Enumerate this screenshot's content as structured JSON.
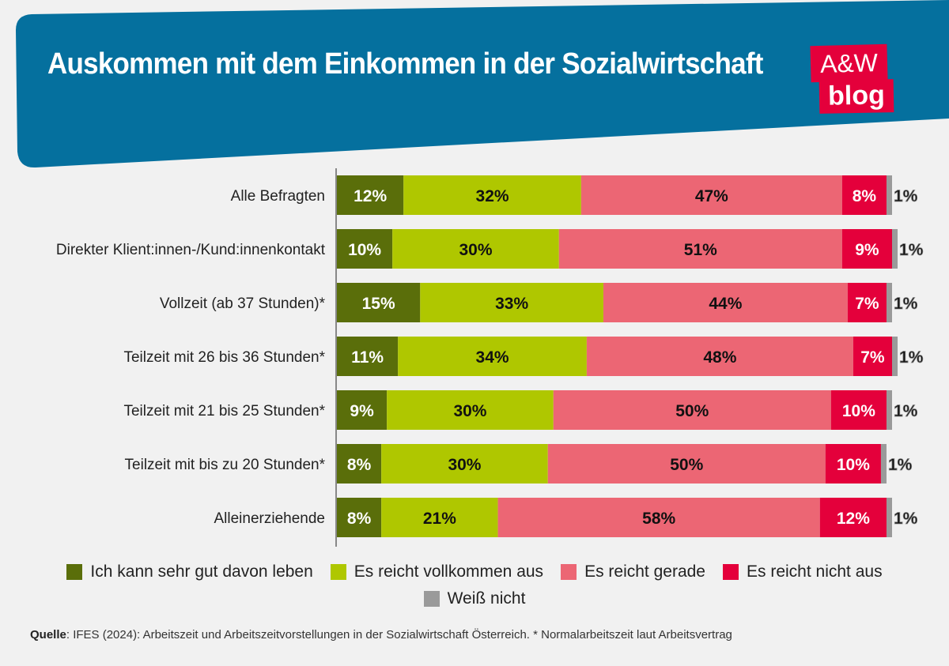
{
  "header": {
    "title": "Auskommen mit dem Einkommen in der Sozialwirtschaft",
    "logo_line1": "A&W",
    "logo_line2": "blog",
    "banner_color": "#05709e",
    "logo_color": "#e4003b"
  },
  "chart_data": {
    "type": "bar",
    "orientation": "horizontal",
    "stacked": true,
    "title": "Auskommen mit dem Einkommen in der Sozialwirtschaft",
    "xlabel": "",
    "ylabel": "",
    "xlim": [
      0,
      100
    ],
    "grid": false,
    "legend_position": "bottom",
    "categories": [
      "Alle Befragten",
      "Direkter Klient:innen-/Kund:innenkontakt",
      "Vollzeit (ab 37 Stunden)*",
      "Teilzeit mit 26 bis 36 Stunden*",
      "Teilzeit mit 21 bis 25 Stunden*",
      "Teilzeit mit bis zu 20 Stunden*",
      "Alleinerziehende"
    ],
    "series": [
      {
        "name": "Ich kann sehr gut davon leben",
        "color": "#5a6e0a",
        "label_color": "#ffffff",
        "values": [
          12,
          10,
          15,
          11,
          9,
          8,
          8
        ]
      },
      {
        "name": "Es reicht vollkommen aus",
        "color": "#afc700",
        "label_color": "#111111",
        "values": [
          32,
          30,
          33,
          34,
          30,
          30,
          21
        ]
      },
      {
        "name": "Es reicht gerade",
        "color": "#ec6674",
        "label_color": "#111111",
        "values": [
          47,
          51,
          44,
          48,
          50,
          50,
          58
        ]
      },
      {
        "name": "Es reicht nicht aus",
        "color": "#e4003b",
        "label_color": "#ffffff",
        "values": [
          8,
          9,
          7,
          7,
          10,
          10,
          12
        ]
      },
      {
        "name": "Weiß nicht",
        "color": "#9a9a9a",
        "label_color": "#111111",
        "values": [
          1,
          1,
          1,
          1,
          1,
          1,
          1
        ]
      }
    ],
    "value_suffix": "%"
  },
  "legend": {
    "items": [
      {
        "label": "Ich kann sehr gut davon leben",
        "color": "#5a6e0a"
      },
      {
        "label": "Es reicht vollkommen aus",
        "color": "#afc700"
      },
      {
        "label": "Es reicht gerade",
        "color": "#ec6674"
      },
      {
        "label": "Es reicht nicht aus",
        "color": "#e4003b"
      },
      {
        "label": "Weiß nicht",
        "color": "#9a9a9a"
      }
    ]
  },
  "source": {
    "label": "Quelle",
    "text": ": IFES (2024): Arbeitszeit und Arbeitszeitvorstellungen in der Sozialwirtschaft Österreich. * Normalarbeitszeit laut Arbeitsvertrag"
  }
}
